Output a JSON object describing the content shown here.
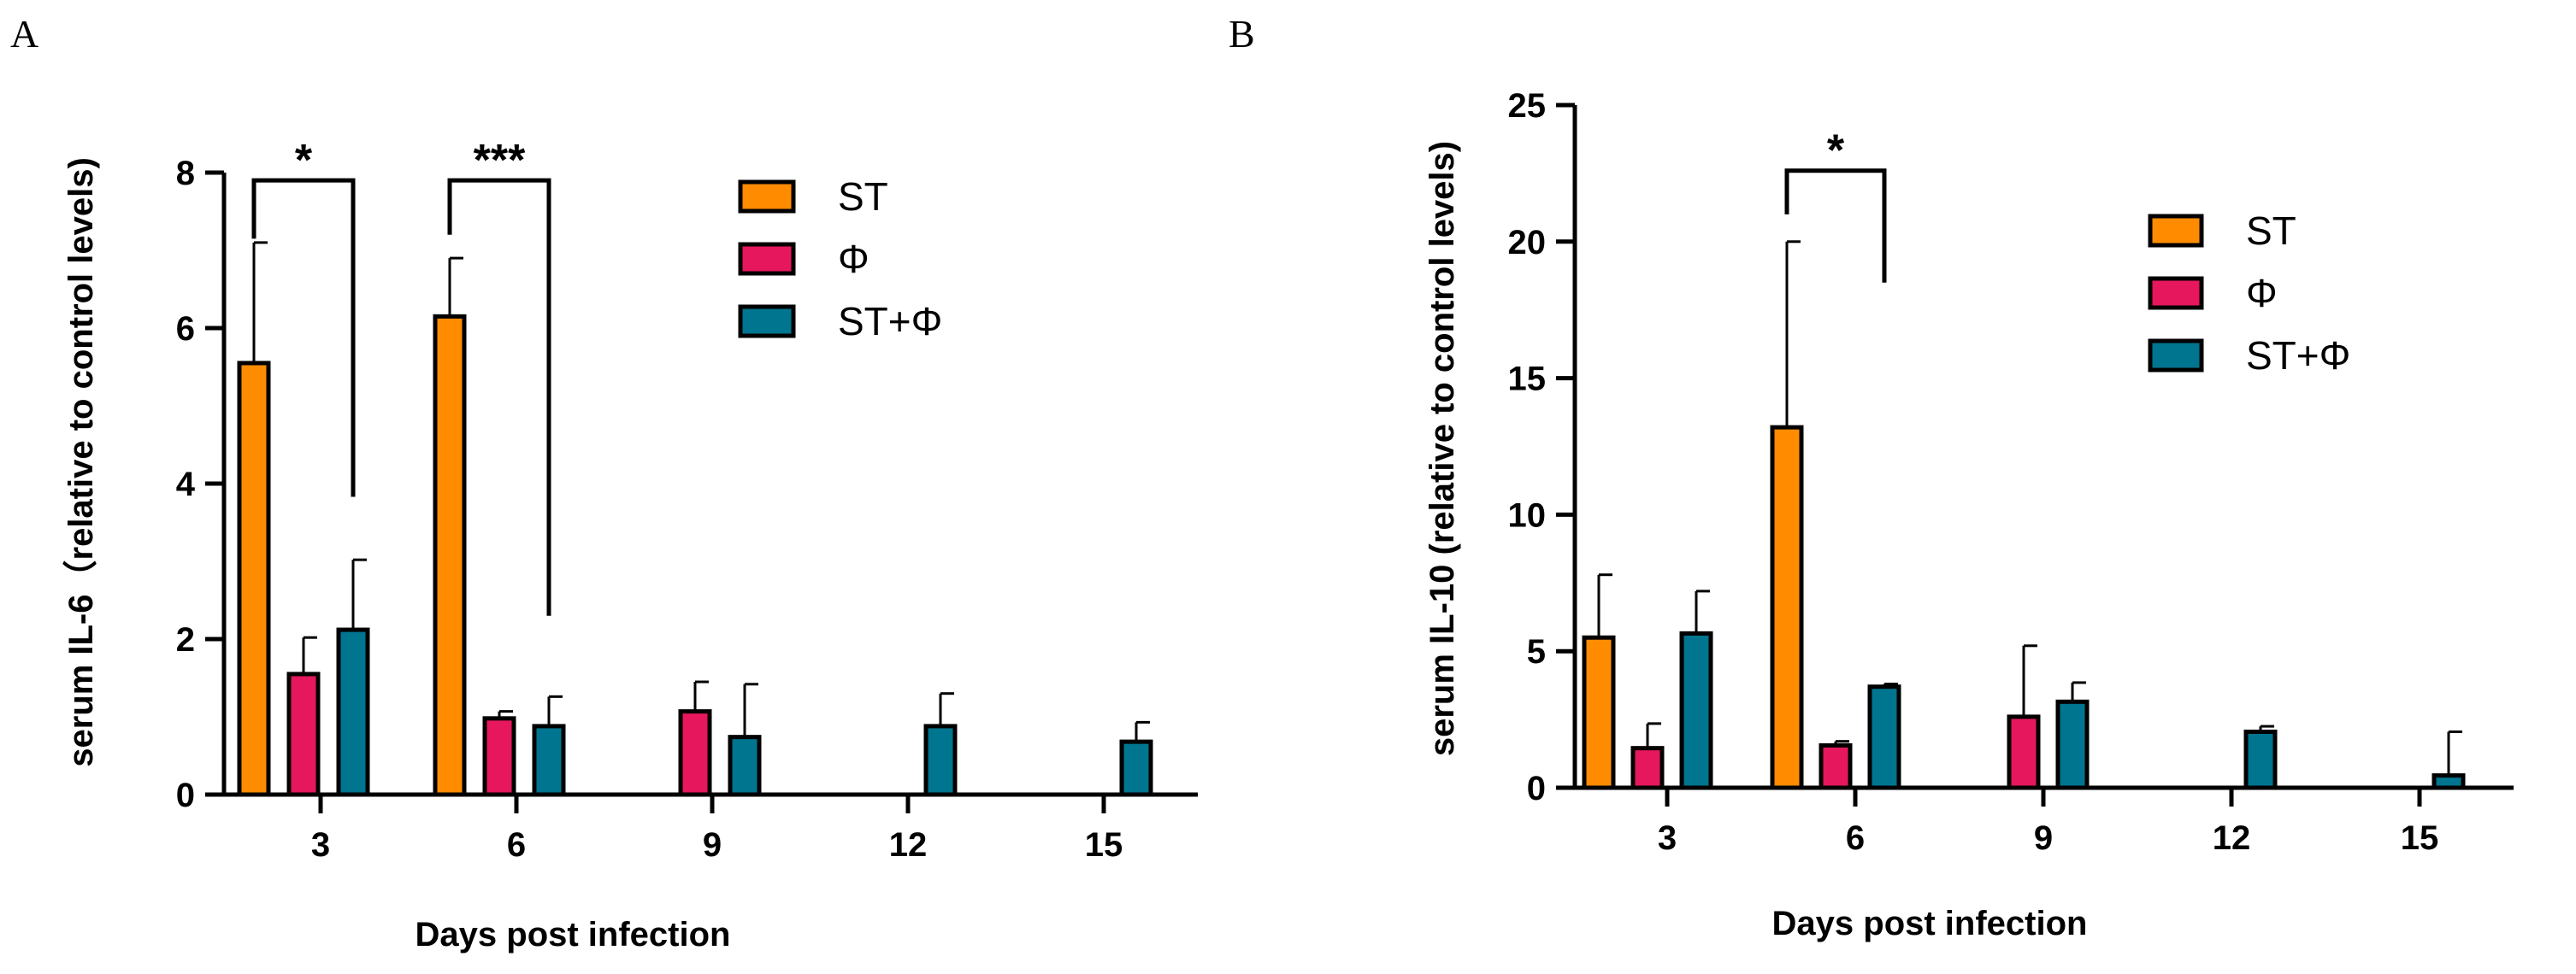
{
  "colors": {
    "ST": "#ff8c00",
    "phi": "#e6175c",
    "ST_phi": "#00758f",
    "outline": "#000000"
  },
  "chart_data": [
    {
      "panel_label": "A",
      "type": "bar",
      "categories": [
        "3",
        "6",
        "9",
        "12",
        "15"
      ],
      "xlabel": "Days post infection",
      "ylabel": "serum IL-6（relative to control levels)",
      "ylim": [
        0,
        8
      ],
      "yticks": [
        "0",
        "2",
        "4",
        "6",
        "8"
      ],
      "legend_position": "top-right",
      "series": [
        {
          "name": "ST",
          "color_key": "ST",
          "values": [
            5.55,
            6.15,
            0,
            0,
            0
          ],
          "errors": [
            1.55,
            0.75,
            0,
            0,
            0
          ]
        },
        {
          "name": "Φ",
          "color_key": "phi",
          "values": [
            1.55,
            0.98,
            1.07,
            0,
            0
          ],
          "errors": [
            0.47,
            0.09,
            0.38,
            0,
            0
          ]
        },
        {
          "name": "ST+Φ",
          "color_key": "ST_phi",
          "values": [
            2.12,
            0.88,
            0.74,
            0.88,
            0.68
          ],
          "errors": [
            0.9,
            0.38,
            0.68,
            0.42,
            0.25
          ]
        }
      ],
      "significance": [
        {
          "label": "*",
          "category_index": 0,
          "from_series": 0,
          "to_series": 2,
          "y": 7.9,
          "left_drop": 7.15,
          "right_drop": 3.83
        },
        {
          "label": "***",
          "category_index": 1,
          "from_series": 0,
          "to_series": 2,
          "y": 7.9,
          "left_drop": 7.2,
          "right_drop": 2.3
        }
      ]
    },
    {
      "panel_label": "B",
      "type": "bar",
      "categories": [
        "3",
        "6",
        "9",
        "12",
        "15"
      ],
      "xlabel": "Days post infection",
      "ylabel": "serum IL-10 (relative to control levels)",
      "ylim": [
        0,
        25
      ],
      "yticks": [
        "0",
        "5",
        "10",
        "15",
        "20",
        "25"
      ],
      "legend_position": "top-right",
      "series": [
        {
          "name": "ST",
          "color_key": "ST",
          "values": [
            5.5,
            13.2,
            0,
            0,
            0
          ],
          "errors": [
            2.3,
            6.8,
            0,
            0,
            0
          ]
        },
        {
          "name": "Φ",
          "color_key": "phi",
          "values": [
            1.45,
            1.55,
            2.6,
            0,
            0
          ],
          "errors": [
            0.9,
            0.15,
            2.6,
            0,
            0
          ]
        },
        {
          "name": "ST+Φ",
          "color_key": "ST_phi",
          "values": [
            5.65,
            3.7,
            3.15,
            2.05,
            0.45
          ],
          "errors": [
            1.55,
            0.1,
            0.7,
            0.2,
            1.6
          ]
        }
      ],
      "significance": [
        {
          "label": "*",
          "category_index": 1,
          "from_series": 0,
          "to_series": 2,
          "y": 22.6,
          "left_drop": 21.0,
          "right_drop": 18.5
        }
      ]
    }
  ]
}
